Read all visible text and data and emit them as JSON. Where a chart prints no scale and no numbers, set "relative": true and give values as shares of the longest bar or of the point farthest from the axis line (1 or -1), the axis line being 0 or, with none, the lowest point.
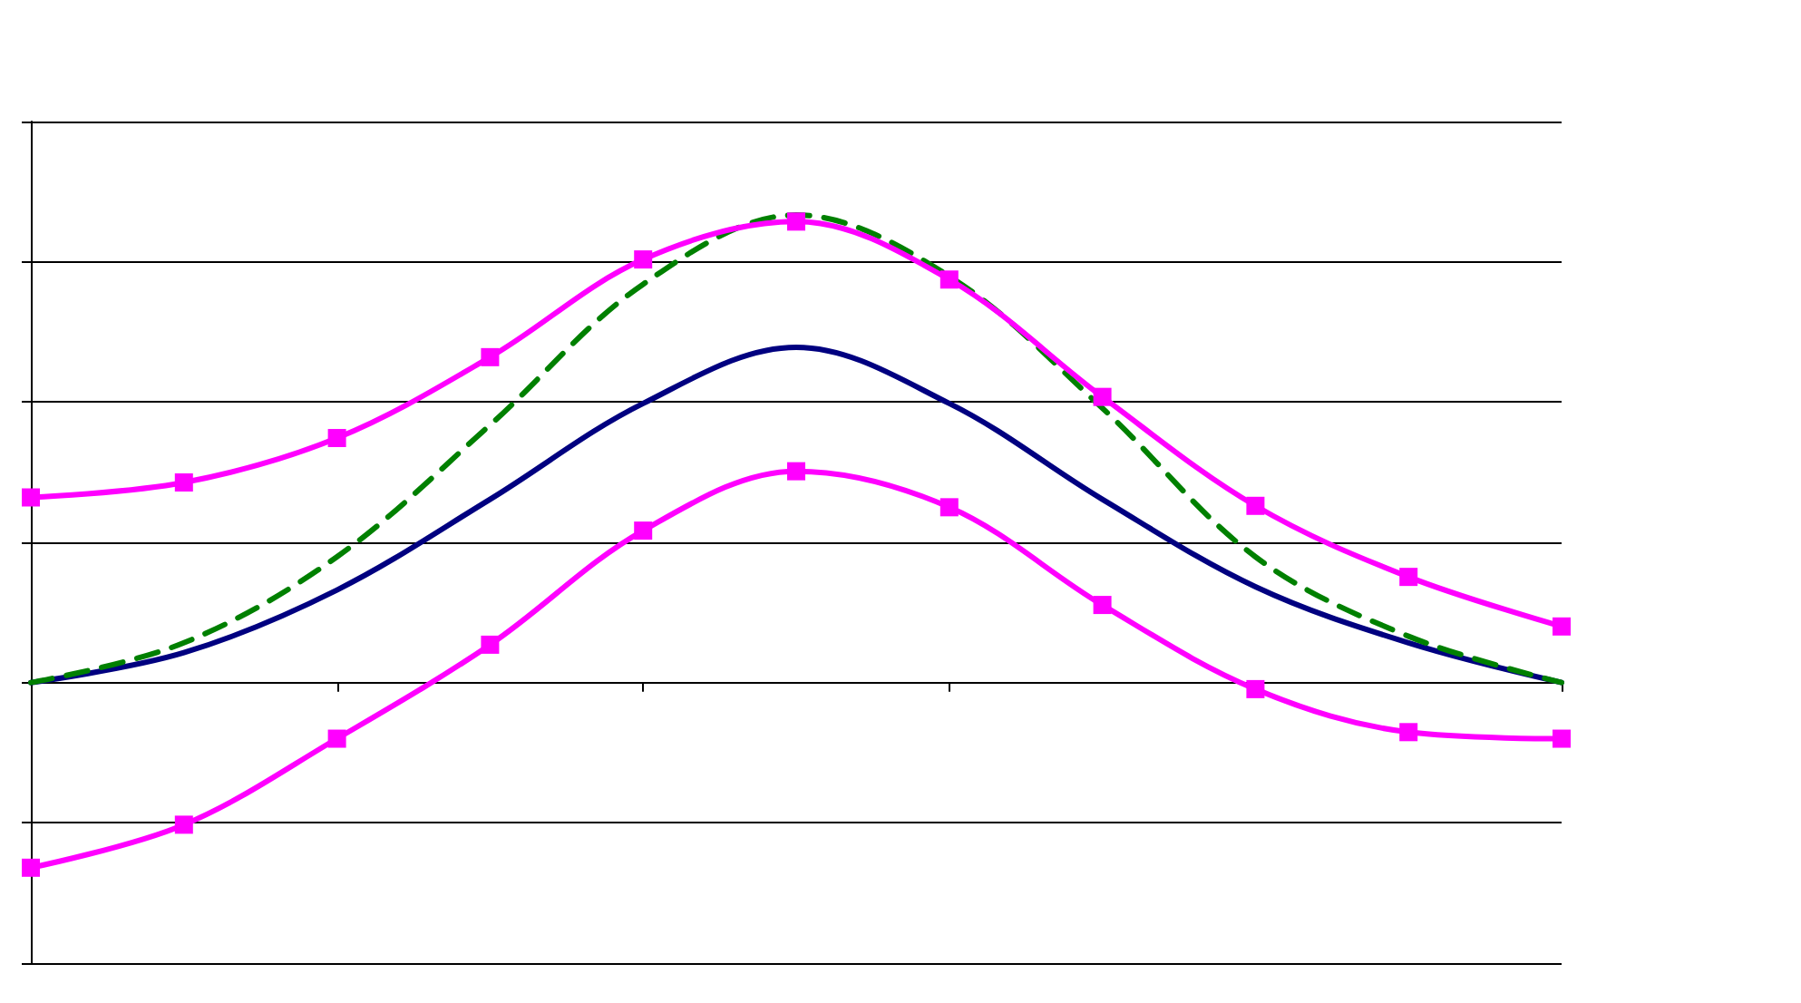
{
  "chart_data": {
    "type": "line",
    "relative": true,
    "grid": "y",
    "categories": [
      null,
      null,
      null,
      null,
      null,
      null,
      null,
      null,
      null,
      null,
      null
    ],
    "series": [
      {
        "color": "#000080",
        "marker": "none",
        "line_style": "solid",
        "values": [
          0,
          0.064,
          0.198,
          0.392,
          0.597,
          0.717,
          0.597,
          0.392,
          0.205,
          0.085,
          0
        ]
      },
      {
        "color": "#008000",
        "marker": "none",
        "line_style": "dashed",
        "values": [
          0,
          0.085,
          0.269,
          0.551,
          0.852,
          1,
          0.869,
          0.587,
          0.269,
          0.099,
          0
        ]
      },
      {
        "color": "#ff00ff",
        "marker": "square",
        "line_style": "solid",
        "values": [
          0.396,
          0.428,
          0.523,
          0.696,
          0.905,
          0.986,
          0.862,
          0.611,
          0.378,
          0.226,
          0.12
        ]
      },
      {
        "color": "#ff00ff",
        "marker": "square",
        "line_style": "solid",
        "values": [
          -0.396,
          -0.304,
          -0.12,
          0.081,
          0.325,
          0.452,
          0.375,
          0.166,
          -0.014,
          -0.106,
          -0.12
        ]
      }
    ]
  }
}
